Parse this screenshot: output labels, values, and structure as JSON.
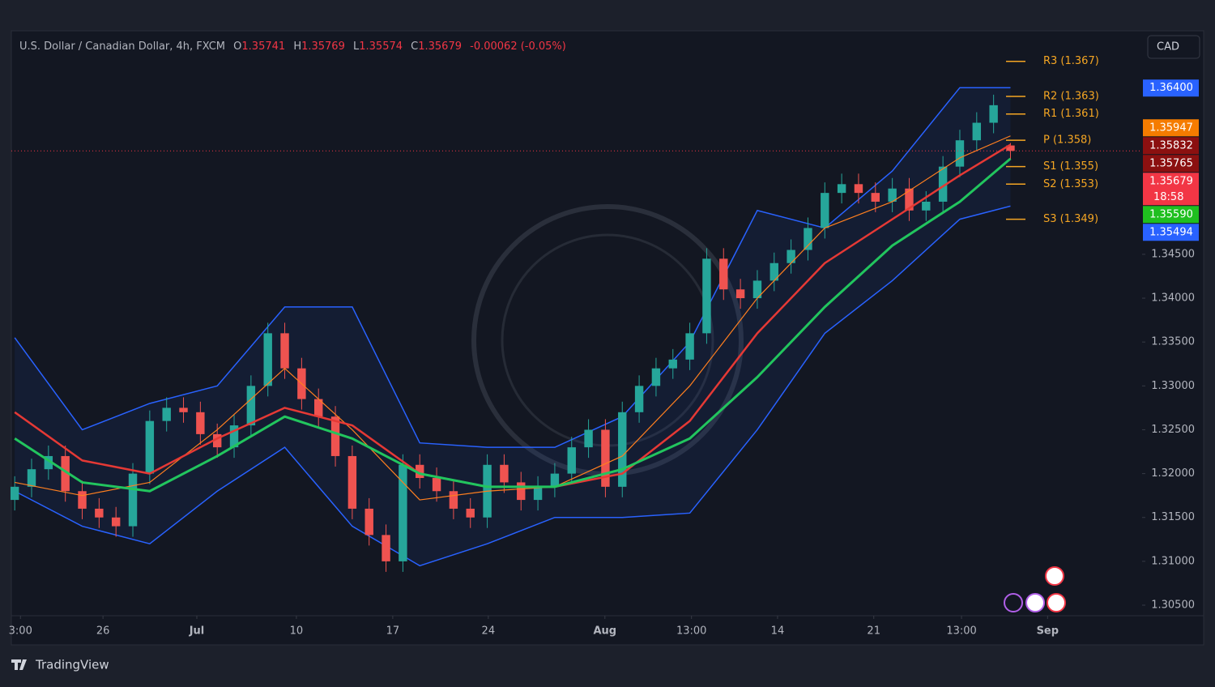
{
  "header": {
    "symbol": "U.S. Dollar / Canadian Dollar, 4h, FXCM",
    "o_label": "O",
    "h_label": "H",
    "l_label": "L",
    "c_label": "C",
    "change": "-0.00062 (-0.05%)",
    "currency": "CAD",
    "brand": "TradingView"
  },
  "chart_data": {
    "type": "candlestick",
    "open": [
      1.317,
      1.3185,
      1.3205,
      1.322,
      1.318,
      1.316,
      1.315,
      1.314,
      1.32,
      1.326,
      1.3275,
      1.327,
      1.3245,
      1.323,
      1.3255,
      1.33,
      1.336,
      1.332,
      1.3285,
      1.3265,
      1.322,
      1.316,
      1.313,
      1.31,
      1.321,
      1.3195,
      1.318,
      1.316,
      1.315,
      1.321,
      1.319,
      1.317,
      1.3185,
      1.32,
      1.323,
      1.325,
      1.3185,
      1.327,
      1.33,
      1.332,
      1.333,
      1.336,
      1.3445,
      1.341,
      1.34,
      1.342,
      1.344,
      1.3455,
      1.348,
      1.352,
      1.353,
      1.352,
      1.351,
      1.3525,
      1.35,
      1.351,
      1.355,
      1.358,
      1.36,
      1.35741
    ],
    "high": [
      1.3197,
      1.3217,
      1.3232,
      1.3232,
      1.3192,
      1.3172,
      1.3162,
      1.3212,
      1.3272,
      1.3287,
      1.3287,
      1.3282,
      1.3257,
      1.3267,
      1.3312,
      1.3372,
      1.3372,
      1.3332,
      1.3297,
      1.3277,
      1.3232,
      1.3172,
      1.3142,
      1.3222,
      1.3222,
      1.3207,
      1.3192,
      1.3172,
      1.3222,
      1.3222,
      1.3202,
      1.3197,
      1.3212,
      1.3242,
      1.3262,
      1.3262,
      1.3282,
      1.3312,
      1.3332,
      1.3342,
      1.3372,
      1.3457,
      1.3457,
      1.3422,
      1.3432,
      1.3452,
      1.3467,
      1.3492,
      1.3532,
      1.3542,
      1.3542,
      1.3532,
      1.3537,
      1.3537,
      1.3522,
      1.3562,
      1.3592,
      1.3612,
      1.3632,
      1.35769
    ],
    "low": [
      1.3158,
      1.3173,
      1.3193,
      1.3168,
      1.3148,
      1.3138,
      1.3128,
      1.3128,
      1.3188,
      1.3248,
      1.3258,
      1.3233,
      1.3218,
      1.3218,
      1.3243,
      1.3288,
      1.3308,
      1.3273,
      1.3253,
      1.3208,
      1.3148,
      1.3118,
      1.3088,
      1.3088,
      1.3183,
      1.3168,
      1.3148,
      1.3138,
      1.3138,
      1.3178,
      1.3158,
      1.3158,
      1.3173,
      1.3188,
      1.3218,
      1.3173,
      1.3173,
      1.3258,
      1.3288,
      1.3308,
      1.3318,
      1.3348,
      1.3398,
      1.3388,
      1.3388,
      1.3408,
      1.3428,
      1.3443,
      1.3468,
      1.3508,
      1.3508,
      1.3498,
      1.3498,
      1.3488,
      1.3488,
      1.3498,
      1.3538,
      1.3568,
      1.3588,
      1.35574
    ],
    "close": [
      1.3185,
      1.3205,
      1.322,
      1.318,
      1.316,
      1.315,
      1.314,
      1.32,
      1.326,
      1.3275,
      1.327,
      1.3245,
      1.323,
      1.3255,
      1.33,
      1.336,
      1.332,
      1.3285,
      1.3265,
      1.322,
      1.316,
      1.313,
      1.31,
      1.321,
      1.3195,
      1.318,
      1.316,
      1.315,
      1.321,
      1.319,
      1.317,
      1.3185,
      1.32,
      1.323,
      1.325,
      1.3185,
      1.327,
      1.33,
      1.332,
      1.333,
      1.336,
      1.3445,
      1.341,
      1.34,
      1.342,
      1.344,
      1.3455,
      1.348,
      1.352,
      1.353,
      1.352,
      1.351,
      1.3525,
      1.35,
      1.351,
      1.355,
      1.358,
      1.36,
      1.362,
      1.35679
    ],
    "up_color": "#26a69a",
    "down_color": "#ef5350",
    "xlim": [
      -0.2,
      66.8
    ],
    "xticks": [
      {
        "value": 0.34,
        "label": "3:00"
      },
      {
        "value": 5.23,
        "label": "26"
      },
      {
        "value": 10.79,
        "label": "Jul",
        "bold": true
      },
      {
        "value": 16.69,
        "label": "10"
      },
      {
        "value": 22.4,
        "label": "17"
      },
      {
        "value": 28.06,
        "label": "24"
      },
      {
        "value": 34.97,
        "label": "Aug",
        "bold": true
      },
      {
        "value": 40.1,
        "label": "13:00"
      },
      {
        "value": 45.2,
        "label": "14"
      },
      {
        "value": 50.9,
        "label": "21"
      },
      {
        "value": 56.1,
        "label": "13:00"
      },
      {
        "value": 61.2,
        "label": "Sep",
        "bold": true
      }
    ],
    "ylim": [
      1.3038,
      1.3703
    ],
    "yticks": [
      {
        "value": 1.305,
        "label": "1.30500"
      },
      {
        "value": 1.31,
        "label": "1.31000"
      },
      {
        "value": 1.315,
        "label": "1.31500"
      },
      {
        "value": 1.32,
        "label": "1.32000"
      },
      {
        "value": 1.325,
        "label": "1.32500"
      },
      {
        "value": 1.33,
        "label": "1.33000"
      },
      {
        "value": 1.335,
        "label": "1.33500"
      },
      {
        "value": 1.34,
        "label": "1.34000"
      },
      {
        "value": 1.345,
        "label": "1.34500"
      }
    ],
    "lines": [
      {
        "color": "#ff7f1f",
        "width": 1.2,
        "x": [
          0,
          4,
          8,
          12,
          16,
          20,
          24,
          28,
          32,
          36,
          40,
          44,
          48,
          52,
          56,
          59
        ],
        "values": [
          1.319,
          1.3175,
          1.319,
          1.325,
          1.332,
          1.325,
          1.317,
          1.318,
          1.3185,
          1.322,
          1.33,
          1.34,
          1.348,
          1.351,
          1.356,
          1.3585
        ]
      },
      {
        "color": "#e53935",
        "width": 2.5,
        "x": [
          0,
          4,
          8,
          12,
          16,
          20,
          24,
          28,
          32,
          36,
          40,
          44,
          48,
          52,
          56,
          59
        ],
        "values": [
          1.327,
          1.3215,
          1.32,
          1.324,
          1.3275,
          1.3255,
          1.32,
          1.3185,
          1.3185,
          1.32,
          1.326,
          1.336,
          1.344,
          1.349,
          1.354,
          1.3575
        ]
      },
      {
        "color": "#22c55e",
        "width": 3,
        "x": [
          0,
          4,
          8,
          12,
          16,
          20,
          24,
          28,
          32,
          36,
          40,
          44,
          48,
          52,
          56,
          59
        ],
        "values": [
          1.324,
          1.319,
          1.318,
          1.322,
          1.3265,
          1.324,
          1.32,
          1.3185,
          1.3185,
          1.3205,
          1.324,
          1.331,
          1.339,
          1.346,
          1.351,
          1.3559
        ]
      }
    ],
    "channel": {
      "color": "#2962ff",
      "x": [
        0,
        4,
        8,
        12,
        16,
        20,
        24,
        28,
        32,
        36,
        40,
        44,
        48,
        52,
        56,
        59
      ],
      "upper": [
        1.3355,
        1.325,
        1.328,
        1.33,
        1.339,
        1.339,
        1.3235,
        1.323,
        1.323,
        1.3265,
        1.335,
        1.35,
        1.348,
        1.3545,
        1.364,
        1.364
      ],
      "lower": [
        1.318,
        1.314,
        1.312,
        1.318,
        1.323,
        1.314,
        1.3095,
        1.312,
        1.315,
        1.315,
        1.3155,
        1.325,
        1.336,
        1.342,
        1.349,
        1.3505
      ]
    },
    "pivot_color": "#f5a623",
    "pivots": [
      {
        "value": 1.367,
        "label": "R3 (1.367)"
      },
      {
        "value": 1.363,
        "label": "R2 (1.363)"
      },
      {
        "value": 1.361,
        "label": "R1 (1.361)"
      },
      {
        "value": 1.358,
        "label": "P (1.358)"
      },
      {
        "value": 1.355,
        "label": "S1 (1.355)"
      },
      {
        "value": 1.353,
        "label": "S2 (1.353)"
      },
      {
        "value": 1.349,
        "label": "S3 (1.349)"
      }
    ],
    "price_badges": [
      {
        "value": 1.364,
        "label": "1.36400",
        "color": "#2962ff"
      },
      {
        "value": 1.35947,
        "label": "1.35947",
        "color": "#f57c00"
      },
      {
        "value": 1.35832,
        "label": "1.35832",
        "color": "#8b1010"
      },
      {
        "value": 1.35765,
        "label": "1.35765",
        "color": "#8b1010"
      },
      {
        "value": 1.35679,
        "label": "1.35679",
        "color": "#f23645",
        "countdown": "18:58"
      },
      {
        "value": 1.3559,
        "label": "1.35590",
        "color": "#1fbf1f"
      },
      {
        "value": 1.35494,
        "label": "1.35494",
        "color": "#2962ff"
      }
    ]
  }
}
